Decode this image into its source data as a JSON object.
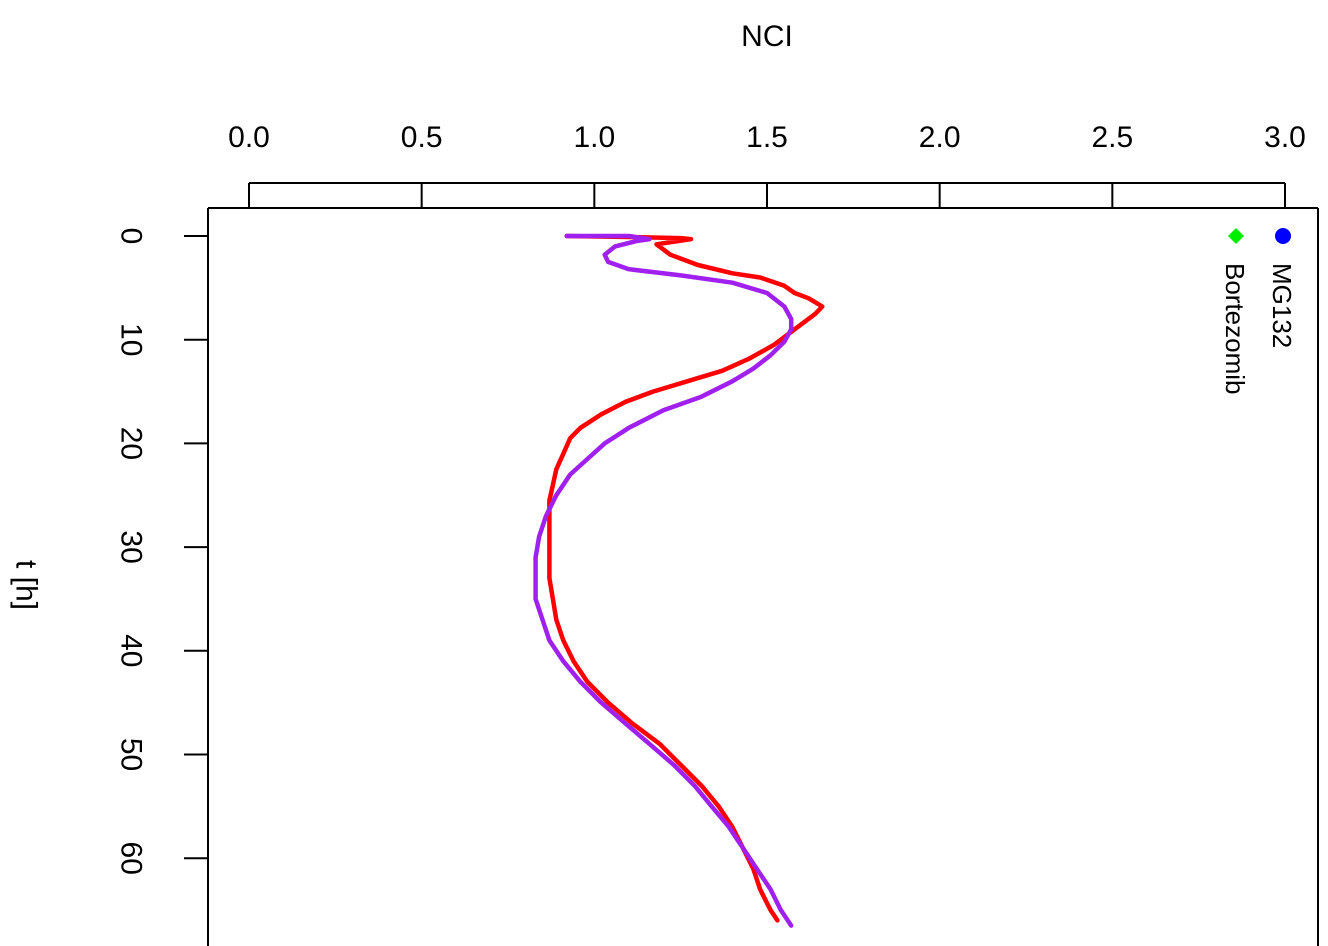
{
  "chart_data": {
    "type": "line",
    "title": "",
    "xlabel": "NCI",
    "ylabel": "t [h]",
    "xlim": [
      0.0,
      3.0
    ],
    "ylim": [
      0,
      66
    ],
    "x_ticks": [
      "0.0",
      "0.5",
      "1.0",
      "1.5",
      "2.0",
      "2.5",
      "3.0"
    ],
    "y_ticks": [
      "0",
      "10",
      "20",
      "30",
      "40",
      "50",
      "60"
    ],
    "x_axis_position": "top",
    "legend_position": "top-right",
    "grid": false,
    "legend": [
      {
        "name": "MG132",
        "marker": "circle",
        "color": "#0000ff"
      },
      {
        "name": "Bortezomib",
        "marker": "diamond",
        "color": "#00ee00"
      }
    ],
    "series": [
      {
        "color": "#ff0000",
        "points": [
          [
            0.92,
            0
          ],
          [
            1.1,
            0.1
          ],
          [
            1.25,
            0.2
          ],
          [
            1.28,
            0.3
          ],
          [
            1.18,
            0.8
          ],
          [
            1.22,
            1.8
          ],
          [
            1.3,
            2.8
          ],
          [
            1.4,
            3.6
          ],
          [
            1.48,
            4.0
          ],
          [
            1.55,
            4.8
          ],
          [
            1.58,
            5.5
          ],
          [
            1.62,
            6.0
          ],
          [
            1.66,
            6.8
          ],
          [
            1.64,
            7.5
          ],
          [
            1.58,
            9.0
          ],
          [
            1.52,
            10.5
          ],
          [
            1.45,
            11.8
          ],
          [
            1.37,
            13.0
          ],
          [
            1.27,
            14.0
          ],
          [
            1.17,
            15.0
          ],
          [
            1.09,
            16.0
          ],
          [
            1.02,
            17.2
          ],
          [
            0.96,
            18.5
          ],
          [
            0.93,
            19.5
          ],
          [
            0.91,
            21.0
          ],
          [
            0.89,
            22.5
          ],
          [
            0.88,
            24.0
          ],
          [
            0.87,
            25.5
          ],
          [
            0.87,
            27.0
          ],
          [
            0.87,
            29.0
          ],
          [
            0.87,
            31.0
          ],
          [
            0.87,
            33.0
          ],
          [
            0.88,
            35.0
          ],
          [
            0.89,
            37.0
          ],
          [
            0.91,
            39.0
          ],
          [
            0.94,
            41.0
          ],
          [
            0.98,
            43.0
          ],
          [
            1.04,
            45.0
          ],
          [
            1.11,
            47.0
          ],
          [
            1.19,
            49.0
          ],
          [
            1.25,
            51.0
          ],
          [
            1.31,
            53.0
          ],
          [
            1.36,
            55.0
          ],
          [
            1.4,
            57.0
          ],
          [
            1.43,
            59.0
          ],
          [
            1.46,
            61.0
          ],
          [
            1.48,
            63.0
          ],
          [
            1.51,
            65.0
          ],
          [
            1.53,
            66.0
          ]
        ]
      },
      {
        "color": "#a020f0",
        "points": [
          [
            0.92,
            0
          ],
          [
            1.1,
            0.0
          ],
          [
            1.16,
            0.3
          ],
          [
            1.12,
            0.5
          ],
          [
            1.06,
            1.0
          ],
          [
            1.03,
            1.8
          ],
          [
            1.04,
            2.5
          ],
          [
            1.1,
            3.2
          ],
          [
            1.25,
            3.8
          ],
          [
            1.4,
            4.5
          ],
          [
            1.5,
            5.5
          ],
          [
            1.55,
            6.8
          ],
          [
            1.57,
            8.0
          ],
          [
            1.57,
            9.0
          ],
          [
            1.55,
            10.2
          ],
          [
            1.51,
            11.5
          ],
          [
            1.46,
            12.8
          ],
          [
            1.4,
            14.0
          ],
          [
            1.31,
            15.5
          ],
          [
            1.2,
            16.8
          ],
          [
            1.1,
            18.5
          ],
          [
            1.03,
            20.0
          ],
          [
            0.98,
            21.5
          ],
          [
            0.93,
            23.0
          ],
          [
            0.89,
            25.0
          ],
          [
            0.86,
            27.0
          ],
          [
            0.84,
            29.0
          ],
          [
            0.83,
            31.0
          ],
          [
            0.83,
            33.0
          ],
          [
            0.83,
            35.0
          ],
          [
            0.85,
            37.0
          ],
          [
            0.87,
            39.0
          ],
          [
            0.91,
            41.0
          ],
          [
            0.96,
            43.0
          ],
          [
            1.02,
            45.0
          ],
          [
            1.09,
            47.0
          ],
          [
            1.16,
            49.0
          ],
          [
            1.23,
            51.0
          ],
          [
            1.29,
            53.0
          ],
          [
            1.34,
            55.0
          ],
          [
            1.39,
            57.0
          ],
          [
            1.43,
            59.0
          ],
          [
            1.47,
            61.0
          ],
          [
            1.51,
            63.0
          ],
          [
            1.54,
            65.0
          ],
          [
            1.57,
            66.5
          ]
        ]
      }
    ]
  }
}
